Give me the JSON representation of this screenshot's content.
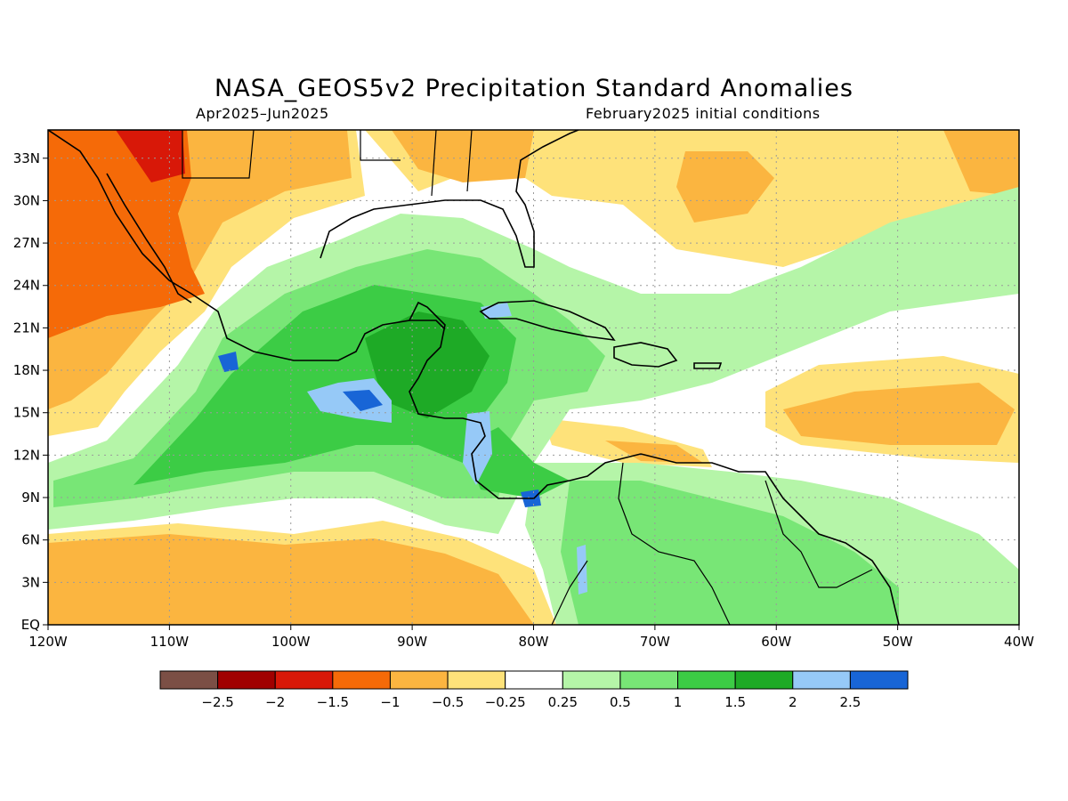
{
  "title": "NASA_GEOS5v2 Precipitation Standard Anomalies",
  "period": "Apr2025–Jun2025",
  "init": "February2025 initial conditions",
  "lat_labels": [
    "33N",
    "30N",
    "27N",
    "24N",
    "21N",
    "18N",
    "15N",
    "12N",
    "9N",
    "6N",
    "3N",
    "EQ"
  ],
  "lat_values": [
    33,
    30,
    27,
    24,
    21,
    18,
    15,
    12,
    9,
    6,
    3,
    0
  ],
  "lon_labels": [
    "120W",
    "110W",
    "100W",
    "90W",
    "80W",
    "70W",
    "60W",
    "50W",
    "40W"
  ],
  "lon_values": [
    -120,
    -110,
    -100,
    -90,
    -80,
    -70,
    -60,
    -50,
    -40
  ],
  "legend": {
    "labels": [
      "−2.5",
      "−2",
      "−1.5",
      "−1",
      "−0.5",
      "−0.25",
      "0.25",
      "0.5",
      "1",
      "1.5",
      "2",
      "2.5"
    ],
    "colors": [
      "#7b4f45",
      "#a00000",
      "#d81808",
      "#f56a08",
      "#fbb540",
      "#fee27a",
      "#ffffff",
      "#b5f5a8",
      "#78e676",
      "#3ccc45",
      "#1eaa26",
      "#96c9f7",
      "#1865d6"
    ]
  },
  "colors": {
    "frame": "#000000",
    "grid": "#9a9a9a",
    "coast": "#000000"
  }
}
